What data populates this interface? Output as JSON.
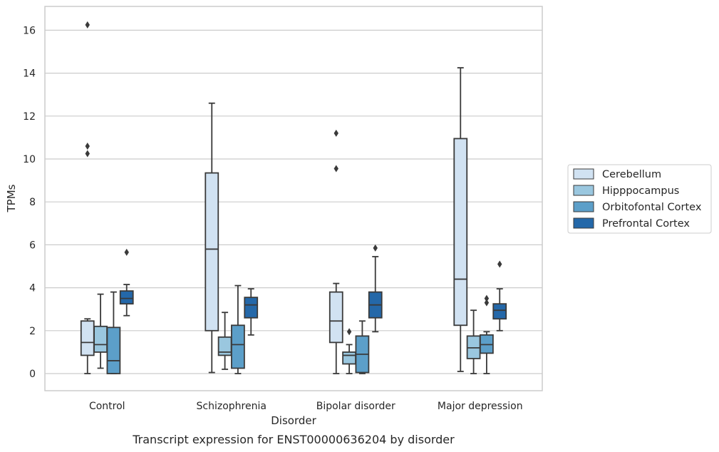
{
  "chart_data": {
    "type": "box",
    "title": "",
    "caption": "Transcript expression for ENST00000636204 by disorder",
    "xlabel": "Disorder",
    "ylabel": "TPMs",
    "ylim": [
      -0.8,
      17.1
    ],
    "yticks": [
      0,
      2,
      4,
      6,
      8,
      10,
      12,
      14,
      16
    ],
    "grid": "horizontal",
    "legend_position": "right",
    "categories": [
      "Control",
      "Schizophrenia",
      "Bipolar disorder",
      "Major depression"
    ],
    "series": [
      {
        "name": "Cerebellum",
        "color": "#d1e2f2",
        "boxes": [
          {
            "min": 0.0,
            "q1": 0.85,
            "median": 1.45,
            "q3": 2.45,
            "max": 2.55,
            "outliers": [
              10.25,
              10.6,
              16.25
            ]
          },
          {
            "min": 0.05,
            "q1": 2.0,
            "median": 5.8,
            "q3": 9.35,
            "max": 12.6,
            "outliers": []
          },
          {
            "min": 0.0,
            "q1": 1.45,
            "median": 2.45,
            "q3": 3.8,
            "max": 4.2,
            "outliers": [
              9.55,
              11.2
            ]
          },
          {
            "min": 0.1,
            "q1": 2.25,
            "median": 4.4,
            "q3": 10.95,
            "max": 14.25,
            "outliers": []
          }
        ]
      },
      {
        "name": "Hipppocampus",
        "color": "#9ac7df",
        "boxes": [
          {
            "min": 0.25,
            "q1": 1.0,
            "median": 1.35,
            "q3": 2.2,
            "max": 3.7,
            "outliers": []
          },
          {
            "min": 0.2,
            "q1": 0.85,
            "median": 1.0,
            "q3": 1.7,
            "max": 2.85,
            "outliers": []
          },
          {
            "min": 0.0,
            "q1": 0.45,
            "median": 0.85,
            "q3": 1.0,
            "max": 1.35,
            "outliers": [
              1.95
            ]
          },
          {
            "min": 0.0,
            "q1": 0.7,
            "median": 1.2,
            "q3": 1.75,
            "max": 2.95,
            "outliers": []
          }
        ]
      },
      {
        "name": "Orbitofontal Cortex",
        "color": "#5c9fc9",
        "boxes": [
          {
            "min": 0.0,
            "q1": 0.0,
            "median": 0.6,
            "q3": 2.15,
            "max": 3.8,
            "outliers": []
          },
          {
            "min": 0.0,
            "q1": 0.25,
            "median": 1.35,
            "q3": 2.25,
            "max": 4.1,
            "outliers": []
          },
          {
            "min": 0.0,
            "q1": 0.05,
            "median": 0.9,
            "q3": 1.75,
            "max": 2.45,
            "outliers": []
          },
          {
            "min": 0.0,
            "q1": 0.95,
            "median": 1.35,
            "q3": 1.8,
            "max": 1.95,
            "outliers": [
              3.3,
              3.5
            ]
          }
        ]
      },
      {
        "name": "Prefrontal Cortex",
        "color": "#2468a9",
        "boxes": [
          {
            "min": 2.7,
            "q1": 3.25,
            "median": 3.5,
            "q3": 3.85,
            "max": 4.15,
            "outliers": [
              5.65
            ]
          },
          {
            "min": 1.8,
            "q1": 2.6,
            "median": 3.2,
            "q3": 3.55,
            "max": 3.95,
            "outliers": []
          },
          {
            "min": 1.95,
            "q1": 2.6,
            "median": 3.2,
            "q3": 3.8,
            "max": 5.45,
            "outliers": [
              5.85
            ]
          },
          {
            "min": 2.0,
            "q1": 2.55,
            "median": 2.95,
            "q3": 3.25,
            "max": 3.95,
            "outliers": [
              5.1
            ]
          }
        ]
      }
    ]
  }
}
